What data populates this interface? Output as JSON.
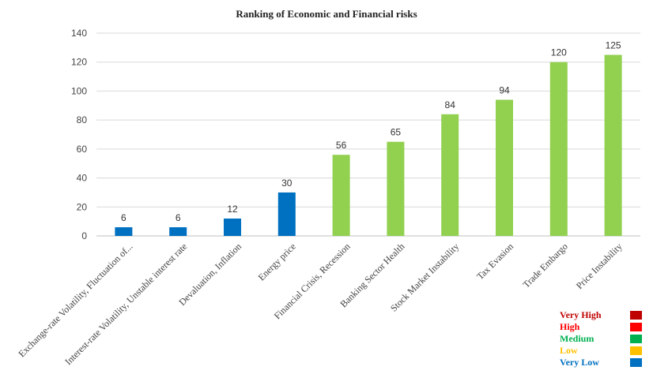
{
  "chart_data": {
    "type": "bar",
    "title": "Ranking of Economic and Financial risks",
    "categories": [
      "Exchange-rate Volatility, Fluctuation of...",
      "Interest-rate Volatility, Unstable interest rate",
      "Devaluation, Inflation",
      "Energy price",
      "Financial Crisis, Recession",
      "Banking Sector Health",
      "Stock Market Instability",
      "Tax Evasion",
      "Trade Embargo",
      "Price Instability"
    ],
    "values": [
      6,
      6,
      12,
      30,
      56,
      65,
      84,
      94,
      120,
      125
    ],
    "bar_colors": [
      "#0070c0",
      "#0070c0",
      "#0070c0",
      "#0070c0",
      "#92d050",
      "#92d050",
      "#92d050",
      "#92d050",
      "#92d050",
      "#92d050"
    ],
    "ylim": [
      0,
      140
    ],
    "yticks": [
      0,
      20,
      40,
      60,
      80,
      100,
      120,
      140
    ],
    "grid": true,
    "legend_position": "bottom-right",
    "legend": [
      {
        "label": "Very High",
        "text_color": "#c00000",
        "swatch": "#c00000"
      },
      {
        "label": "High",
        "text_color": "#ff0000",
        "swatch": "#ff0000"
      },
      {
        "label": "Medium",
        "text_color": "#00b050",
        "swatch": "#00b050"
      },
      {
        "label": "Low",
        "text_color": "#ffc000",
        "swatch": "#ffc000"
      },
      {
        "label": "Very Low",
        "text_color": "#0070c0",
        "swatch": "#0070c0"
      }
    ]
  }
}
